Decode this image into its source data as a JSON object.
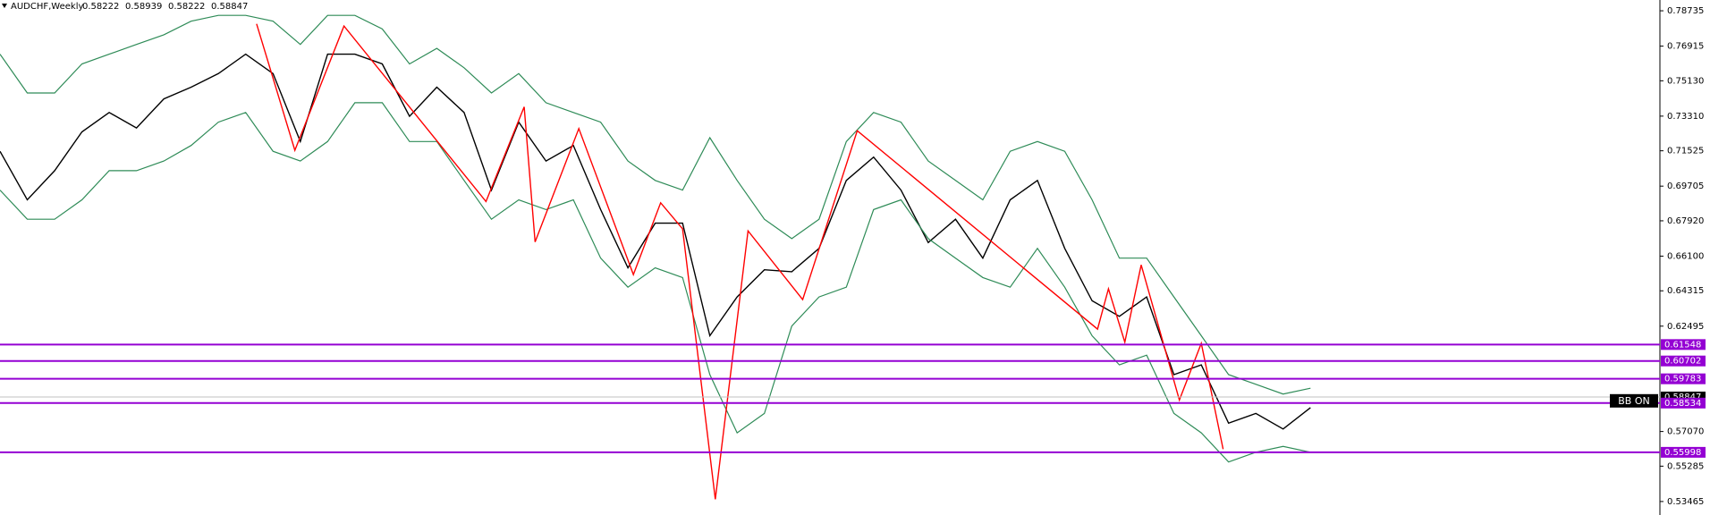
{
  "chart_data": {
    "type": "line",
    "header": {
      "symbol": "AUDCHF,Weekly",
      "ohlc": [
        0.58222,
        0.58939,
        0.58222,
        0.58847
      ]
    },
    "x": [
      0,
      5,
      10,
      15,
      20,
      25,
      30,
      35,
      40,
      45,
      50,
      55,
      60,
      65,
      70,
      75,
      80,
      85,
      90,
      95,
      100,
      105,
      110,
      115,
      120,
      125,
      130,
      135,
      140,
      145,
      150,
      155,
      160,
      165,
      170,
      175,
      180,
      185,
      190,
      195,
      200,
      205,
      210,
      215,
      220,
      225,
      230,
      235,
      240
    ],
    "series": [
      {
        "color": "#000000",
        "values": [
          0.715,
          0.69,
          0.705,
          0.725,
          0.735,
          0.727,
          0.742,
          0.748,
          0.755,
          0.765,
          0.755,
          0.72,
          0.765,
          0.765,
          0.76,
          0.733,
          0.748,
          0.735,
          0.695,
          0.73,
          0.71,
          0.718,
          0.685,
          0.655,
          0.678,
          0.678,
          0.62,
          0.64,
          0.654,
          0.653,
          0.665,
          0.7,
          0.712,
          0.695,
          0.668,
          0.68,
          0.66,
          0.69,
          0.7,
          0.665,
          0.638,
          0.63,
          0.64,
          0.6,
          0.605,
          0.575,
          0.58,
          0.572,
          0.583
        ]
      },
      {
        "color": "#2e8b57",
        "values": [
          0.765,
          0.745,
          0.745,
          0.76,
          0.765,
          0.77,
          0.775,
          0.782,
          0.785,
          0.785,
          0.782,
          0.77,
          0.785,
          0.785,
          0.778,
          0.76,
          0.768,
          0.758,
          0.745,
          0.755,
          0.74,
          0.735,
          0.73,
          0.71,
          0.7,
          0.695,
          0.722,
          0.7,
          0.68,
          0.67,
          0.68,
          0.72,
          0.735,
          0.73,
          0.71,
          0.7,
          0.69,
          0.715,
          0.72,
          0.715,
          0.69,
          0.66,
          0.66,
          0.64,
          0.62,
          0.6,
          0.595,
          0.59,
          0.593
        ]
      },
      {
        "color": "#2e8b57",
        "values": [
          0.695,
          0.68,
          0.68,
          0.69,
          0.705,
          0.705,
          0.71,
          0.718,
          0.73,
          0.735,
          0.715,
          0.71,
          0.72,
          0.74,
          0.74,
          0.72,
          0.72,
          0.7,
          0.68,
          0.69,
          0.685,
          0.69,
          0.66,
          0.645,
          0.655,
          0.65,
          0.6,
          0.57,
          0.58,
          0.625,
          0.64,
          0.645,
          0.685,
          0.69,
          0.67,
          0.66,
          0.65,
          0.645,
          0.665,
          0.645,
          0.62,
          0.605,
          0.61,
          0.58,
          0.57,
          0.555,
          0.56,
          0.563,
          0.56
        ]
      }
    ],
    "zigzag": {
      "color": "#ff0000",
      "x": [
        47,
        54,
        63,
        89,
        96,
        98,
        106,
        116,
        121,
        125,
        131,
        137,
        147,
        157,
        201,
        203,
        206,
        209,
        216,
        220,
        224
      ],
      "values": [
        0.7806,
        0.7155,
        0.7795,
        0.6891,
        0.7379,
        0.6683,
        0.7267,
        0.6515,
        0.6885,
        0.6751,
        0.5358,
        0.674,
        0.6386,
        0.7256,
        0.6234,
        0.6442,
        0.6167,
        0.6565,
        0.5869,
        0.6161,
        0.5616
      ]
    },
    "levels": {
      "color": "#9400d3",
      "values": [
        0.61548,
        0.60702,
        0.59783,
        0.58534,
        0.55998
      ]
    },
    "xlim": [
      0,
      304
    ],
    "ylim": [
      0.5277,
      0.7929
    ],
    "yticks": [
      0.78735,
      0.76915,
      {
        "value": 0.7513,
        "label": "0.75130"
      },
      {
        "value": 0.7331,
        "label": "0.73310"
      },
      0.71525,
      0.69705,
      {
        "value": 0.6792,
        "label": "0.67920"
      },
      {
        "value": 0.661,
        "label": "0.66100"
      },
      0.64315,
      0.62495,
      {
        "value": 0.5707,
        "label": "0.57070"
      },
      0.55285,
      0.53465
    ],
    "button_label": "BB ON"
  }
}
